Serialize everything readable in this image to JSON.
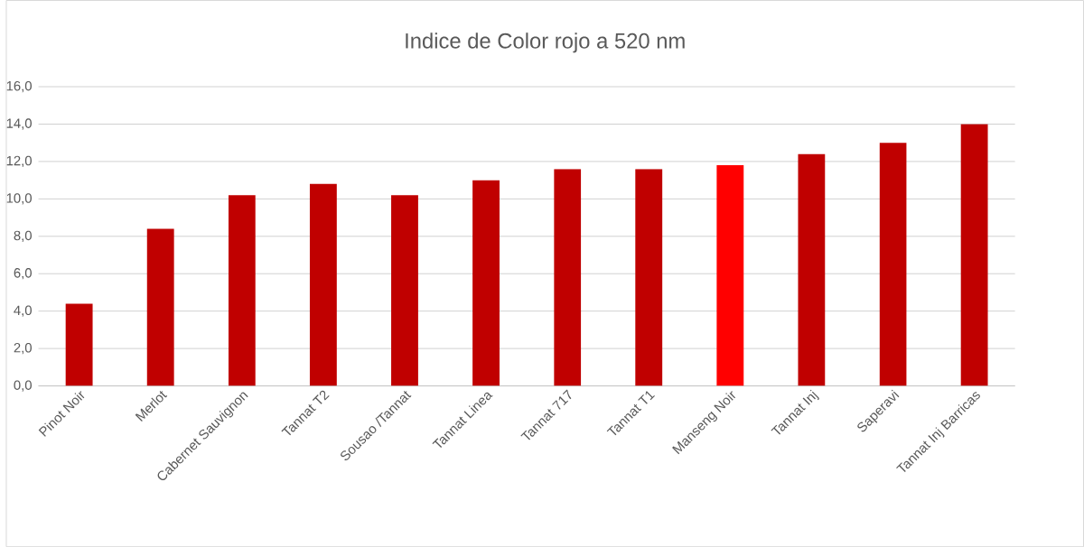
{
  "chart_data": {
    "type": "bar",
    "title": "Indice de Color rojo a 520 nm",
    "categories": [
      "Pinot Noir",
      "Merlot",
      "Cabernet Sauvignon",
      "Tannat T2",
      "Sousao /Tannat",
      "Tannat Linea",
      "Tannat 717",
      "Tannat T1",
      "Manseng Noir",
      "Tannat Inj",
      "Saperavi",
      "Tannat Inj Barricas"
    ],
    "values": [
      4.4,
      8.4,
      10.2,
      10.8,
      10.2,
      11.0,
      11.6,
      11.6,
      11.8,
      12.4,
      13.0,
      14.0
    ],
    "colors": [
      "#c00000",
      "#c00000",
      "#c00000",
      "#c00000",
      "#c00000",
      "#c00000",
      "#c00000",
      "#c00000",
      "#ff0000",
      "#c00000",
      "#c00000",
      "#c00000"
    ],
    "ylim": [
      0,
      16
    ],
    "yticks": [
      {
        "value": 0,
        "label": "0,0"
      },
      {
        "value": 2,
        "label": "2,0"
      },
      {
        "value": 4,
        "label": "4,0"
      },
      {
        "value": 6,
        "label": "6,0"
      },
      {
        "value": 8,
        "label": "8,0"
      },
      {
        "value": 10,
        "label": "10,0"
      },
      {
        "value": 12,
        "label": "12,0"
      },
      {
        "value": 14,
        "label": "14,0"
      },
      {
        "value": 16,
        "label": "16,0"
      }
    ],
    "grid": "y"
  }
}
